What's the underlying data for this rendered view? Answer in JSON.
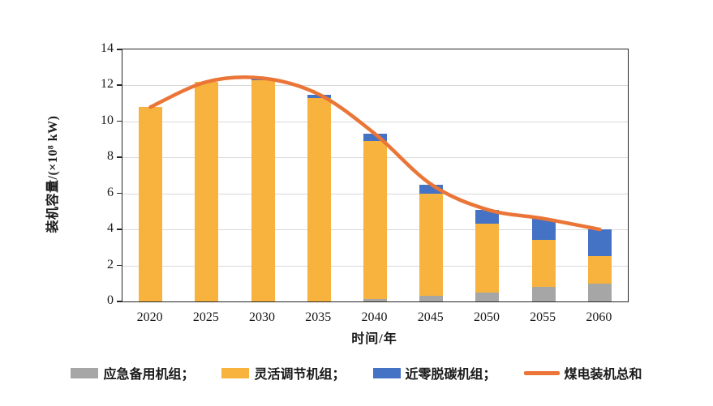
{
  "chart_data": {
    "type": "bar",
    "subtype": "stacked-bars-with-total-line",
    "title": "",
    "xlabel": "时间/年",
    "ylabel": "装机容量/(×10⁸ kW)",
    "ylim": [
      0,
      14
    ],
    "ytick_step": 2,
    "grid": true,
    "legend_position": "bottom",
    "categories": [
      "2020",
      "2025",
      "2030",
      "2035",
      "2040",
      "2045",
      "2050",
      "2055",
      "2060"
    ],
    "series": [
      {
        "name": "应急备用机组",
        "color": "#A6A6A6",
        "values": [
          0,
          0,
          0,
          0,
          0.15,
          0.3,
          0.5,
          0.8,
          1.0
        ]
      },
      {
        "name": "灵活调节机组",
        "color": "#F7B33D",
        "values": [
          10.8,
          12.2,
          12.3,
          11.3,
          8.75,
          5.7,
          3.8,
          2.6,
          1.5
        ]
      },
      {
        "name": "近零脱碳机组",
        "color": "#4472C4",
        "values": [
          0,
          0,
          0.1,
          0.2,
          0.4,
          0.5,
          0.8,
          1.2,
          1.5
        ]
      }
    ],
    "line_series": {
      "name": "煤电装机总和",
      "color": "#EA7537",
      "values": [
        10.8,
        12.2,
        12.4,
        11.5,
        9.3,
        6.5,
        5.1,
        4.6,
        4.0
      ]
    },
    "legend_entries": [
      {
        "label": "应急备用机组；",
        "swatch": "rect",
        "color": "#A6A6A6"
      },
      {
        "label": "灵活调节机组；",
        "swatch": "rect",
        "color": "#F7B33D"
      },
      {
        "label": "近零脱碳机组；",
        "swatch": "rect",
        "color": "#4472C4"
      },
      {
        "label": "煤电装机总和",
        "swatch": "line",
        "color": "#EA7537"
      }
    ]
  }
}
